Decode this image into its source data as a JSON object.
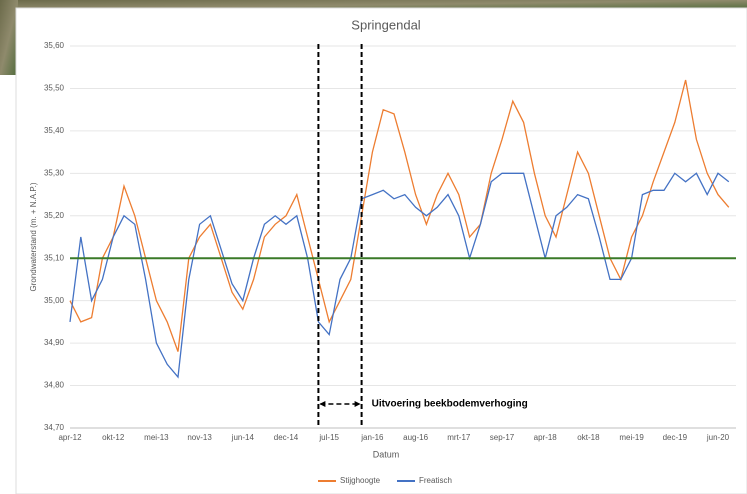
{
  "chart_data": {
    "type": "line",
    "title": "Springendal",
    "x_label": "Datum",
    "y_label": "Grondwaterstand (m. + N.A.P.)",
    "categories": [
      "apr-12",
      null,
      null,
      null,
      "okt-12",
      null,
      null,
      null,
      "mei-13",
      null,
      null,
      null,
      "nov-13",
      null,
      null,
      null,
      "jun-14",
      null,
      null,
      null,
      "dec-14",
      null,
      null,
      null,
      "jul-15",
      null,
      null,
      null,
      "jan-16",
      null,
      null,
      null,
      "aug-16",
      null,
      null,
      null,
      "mrt-17",
      null,
      null,
      null,
      "sep-17",
      null,
      null,
      null,
      "apr-18",
      null,
      null,
      null,
      "okt-18",
      null,
      null,
      null,
      "mei-19",
      null,
      null,
      null,
      "dec-19",
      null,
      null,
      null,
      "jun-20",
      null
    ],
    "series": [
      {
        "name": "Stijghoogte",
        "color": "#ed7d31",
        "values": [
          35.0,
          34.95,
          34.96,
          35.1,
          35.15,
          35.27,
          35.2,
          35.1,
          35.0,
          34.95,
          34.88,
          35.1,
          35.15,
          35.18,
          35.1,
          35.02,
          34.98,
          35.05,
          35.15,
          35.18,
          35.2,
          35.25,
          35.15,
          35.05,
          34.95,
          35.0,
          35.05,
          35.2,
          35.35,
          35.45,
          35.44,
          35.35,
          35.25,
          35.18,
          35.25,
          35.3,
          35.25,
          35.15,
          35.18,
          35.3,
          35.38,
          35.47,
          35.42,
          35.3,
          35.2,
          35.15,
          35.25,
          35.35,
          35.3,
          35.2,
          35.1,
          35.05,
          35.15,
          35.2,
          35.28,
          35.35,
          35.42,
          35.52,
          35.38,
          35.3,
          35.25,
          35.22
        ]
      },
      {
        "name": "Freatisch",
        "color": "#4472c4",
        "values": [
          34.95,
          35.15,
          35.0,
          35.05,
          35.15,
          35.2,
          35.18,
          35.05,
          34.9,
          34.85,
          34.82,
          35.05,
          35.18,
          35.2,
          35.12,
          35.04,
          35.0,
          35.1,
          35.18,
          35.2,
          35.18,
          35.2,
          35.1,
          34.95,
          34.92,
          35.05,
          35.1,
          35.24,
          35.25,
          35.26,
          35.24,
          35.25,
          35.22,
          35.2,
          35.22,
          35.25,
          35.2,
          35.1,
          35.18,
          35.28,
          35.3,
          35.3,
          35.3,
          35.2,
          35.1,
          35.2,
          35.22,
          35.25,
          35.24,
          35.15,
          35.05,
          35.05,
          35.1,
          35.25,
          35.26,
          35.26,
          35.3,
          35.28,
          35.3,
          35.25,
          35.3,
          35.28
        ]
      }
    ],
    "reference_line": {
      "value": 35.1,
      "color": "#3a7a28"
    },
    "annotation": {
      "text": "Uitvoering beekbodemverhoging",
      "x_start": 23,
      "x_end": 27
    },
    "ylim": [
      34.7,
      35.6
    ],
    "yticks": [
      {
        "value": 34.7,
        "label": "34,70"
      },
      {
        "value": 34.8,
        "label": "34,80"
      },
      {
        "value": 34.9,
        "label": "34,90"
      },
      {
        "value": 35.0,
        "label": "35,00"
      },
      {
        "value": 35.1,
        "label": "35,10"
      },
      {
        "value": 35.2,
        "label": "35,20"
      },
      {
        "value": 35.3,
        "label": "35,30"
      },
      {
        "value": 35.4,
        "label": "35,40"
      },
      {
        "value": 35.5,
        "label": "35,50"
      },
      {
        "value": 35.6,
        "label": "35,60"
      }
    ],
    "grid": true,
    "legend": "bottom"
  }
}
